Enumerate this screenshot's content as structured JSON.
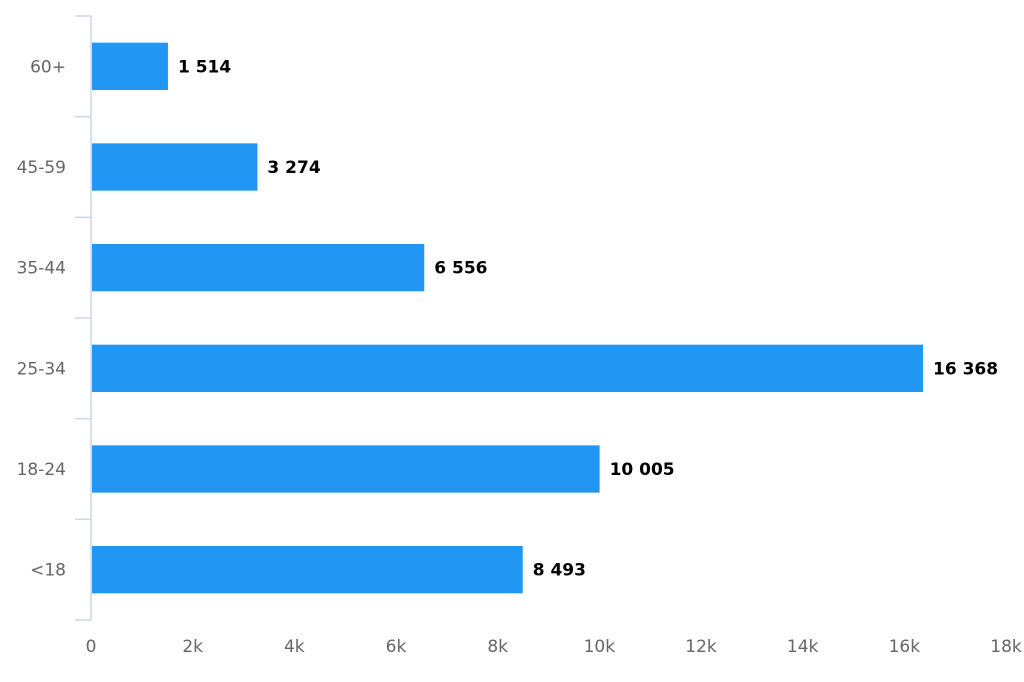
{
  "chart_data": {
    "type": "bar",
    "orientation": "horizontal",
    "title": "",
    "xlabel": "",
    "ylabel": "",
    "categories": [
      "60+",
      "45-59",
      "35-44",
      "25-34",
      "18-24",
      "<18"
    ],
    "values": [
      1514,
      3274,
      6556,
      16368,
      10005,
      8493
    ],
    "data_labels": [
      "1 514",
      "3 274",
      "6 556",
      "16 368",
      "10 005",
      "8 493"
    ],
    "xlim": [
      0,
      18000
    ],
    "ticks": [
      0,
      2000,
      4000,
      6000,
      8000,
      10000,
      12000,
      14000,
      16000,
      18000
    ],
    "tick_labels": [
      "0",
      "2k",
      "4k",
      "6k",
      "8k",
      "10k",
      "12k",
      "14k",
      "16k",
      "18k"
    ],
    "grid": false,
    "legend": "none",
    "bar_color": "#2196f3"
  }
}
